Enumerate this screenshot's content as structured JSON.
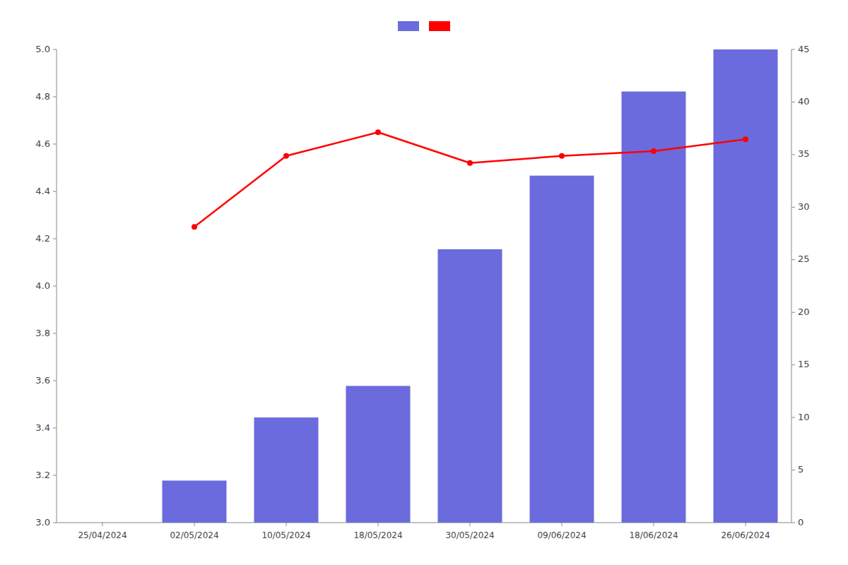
{
  "chart_data": {
    "type": "bar",
    "categories": [
      "25/04/2024",
      "02/05/2024",
      "10/05/2024",
      "18/05/2024",
      "30/05/2024",
      "09/06/2024",
      "18/06/2024",
      "26/06/2024"
    ],
    "series": [
      {
        "type": "bar",
        "color": "#6B6BDD",
        "axis": "y2",
        "values": [
          null,
          4,
          10,
          13,
          26,
          33,
          41,
          45
        ]
      },
      {
        "type": "line",
        "color": "#FF0000",
        "marker": "circle",
        "values": [
          null,
          4.25,
          4.55,
          4.65,
          4.52,
          4.55,
          4.57,
          4.62
        ]
      }
    ],
    "ylim": [
      3.0,
      5.0
    ],
    "yticks": [
      {
        "value": 3.0,
        "label": "3.0"
      },
      3.2,
      3.4,
      3.6,
      3.8,
      {
        "value": 4.0,
        "label": "4.0"
      },
      4.2,
      4.4,
      4.6,
      4.8,
      {
        "value": 5.0,
        "label": "5.0"
      }
    ],
    "y2lim": [
      0,
      45
    ],
    "y2ticks": [
      0,
      5,
      10,
      15,
      20,
      25,
      30,
      35,
      40,
      45
    ],
    "grid": false,
    "legend": "top"
  }
}
